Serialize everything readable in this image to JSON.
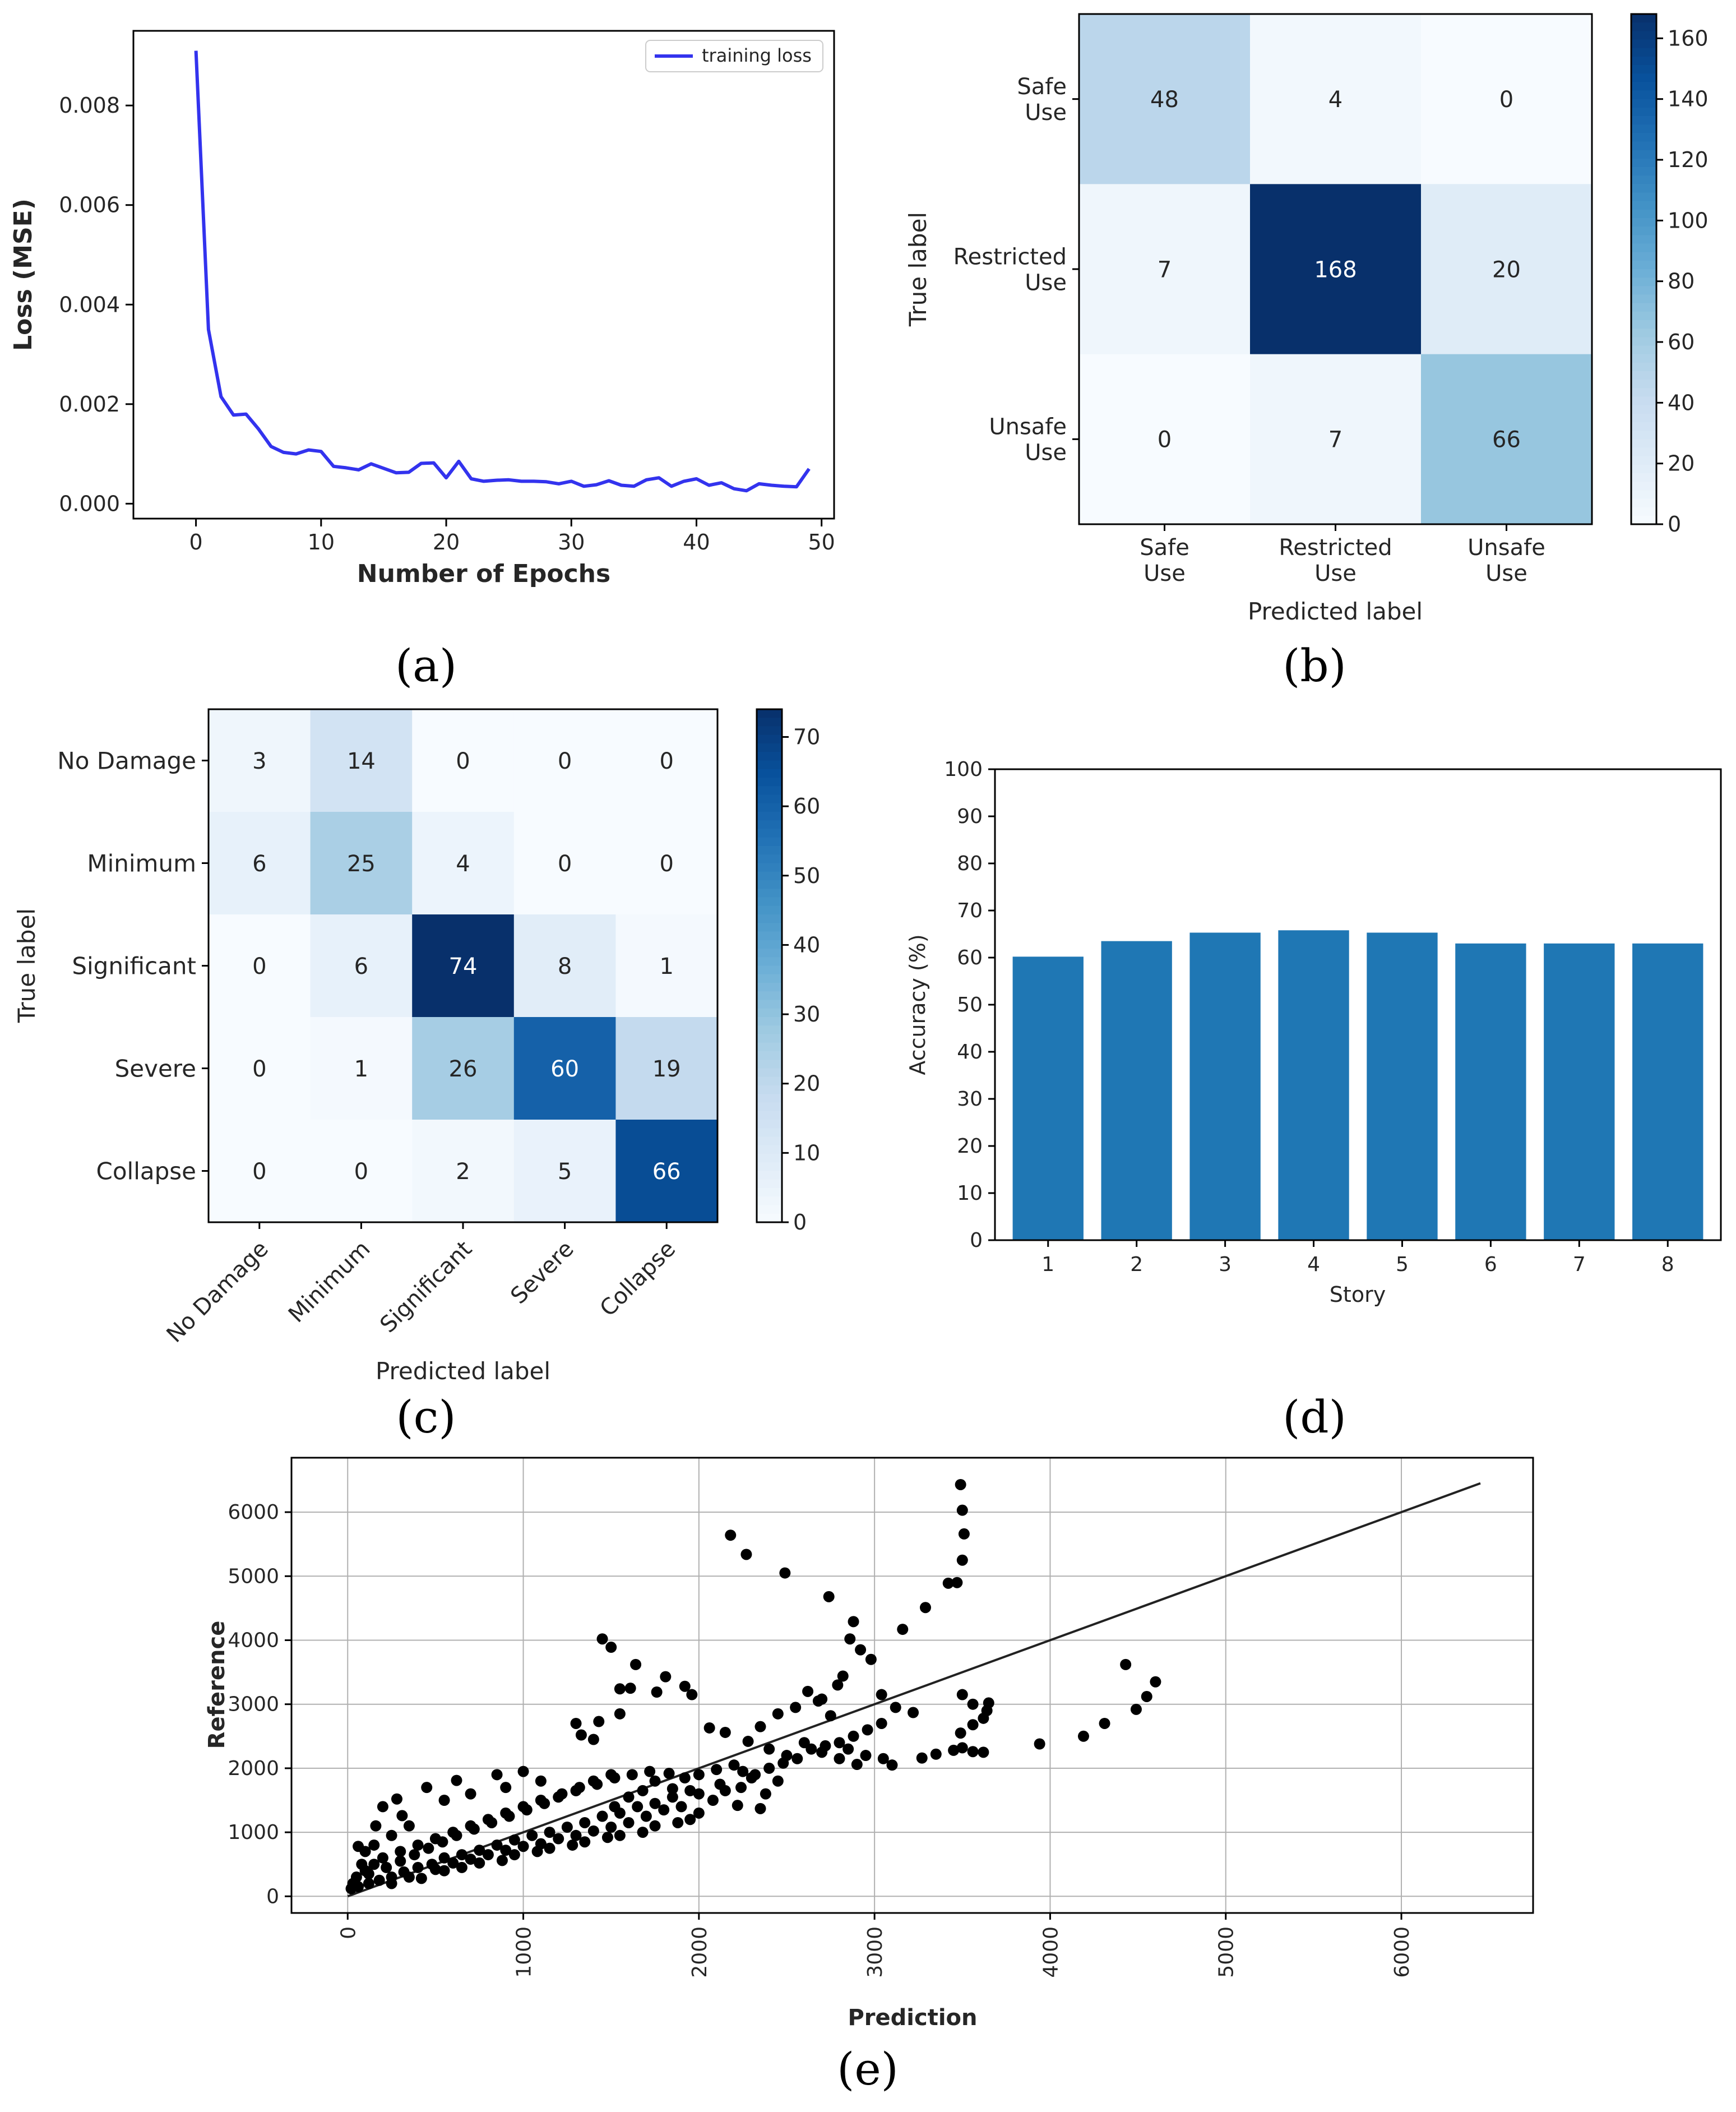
{
  "chart_data": [
    {
      "id": "a",
      "panel_label": "(a)",
      "type": "line",
      "title": "",
      "xlabel": "Number of Epochs",
      "ylabel": "Loss (MSE)",
      "xlim": [
        -5,
        51
      ],
      "ylim": [
        -0.0003,
        0.0095
      ],
      "xticks": [
        0,
        10,
        20,
        30,
        40,
        50
      ],
      "xtick_labels": [
        "0",
        "10",
        "20",
        "30",
        "40",
        "50"
      ],
      "yticks": [
        0,
        0.002,
        0.004,
        0.006,
        0.008
      ],
      "ytick_labels": [
        "0.000",
        "0.002",
        "0.004",
        "0.006",
        "0.008"
      ],
      "legend": "top-right",
      "color": "#3333ee",
      "series": [
        {
          "name": "training loss",
          "x": [
            0,
            1,
            2,
            3,
            4,
            5,
            6,
            7,
            8,
            9,
            10,
            11,
            12,
            13,
            14,
            15,
            16,
            17,
            18,
            19,
            20,
            21,
            22,
            23,
            24,
            25,
            26,
            27,
            28,
            29,
            30,
            31,
            32,
            33,
            34,
            35,
            36,
            37,
            38,
            39,
            40,
            41,
            42,
            43,
            44,
            45,
            46,
            47,
            48,
            49
          ],
          "values": [
            0.0091,
            0.0035,
            0.00215,
            0.00178,
            0.0018,
            0.0015,
            0.00115,
            0.00103,
            0.001,
            0.00108,
            0.00105,
            0.00075,
            0.00072,
            0.00068,
            0.0008,
            0.00071,
            0.00062,
            0.00063,
            0.00081,
            0.00082,
            0.00052,
            0.00085,
            0.0005,
            0.00045,
            0.00047,
            0.00048,
            0.00045,
            0.00045,
            0.00044,
            0.0004,
            0.00045,
            0.00035,
            0.00038,
            0.00046,
            0.00037,
            0.00035,
            0.00048,
            0.00052,
            0.00035,
            0.00045,
            0.0005,
            0.00037,
            0.00042,
            0.0003,
            0.00026,
            0.0004,
            0.00037,
            0.00035,
            0.00034,
            0.0007
          ]
        }
      ]
    },
    {
      "id": "b",
      "panel_label": "(b)",
      "type": "heatmap",
      "title": "",
      "xlabel": "Predicted label",
      "ylabel": "True label",
      "row_labels": [
        [
          "Safe",
          "Use"
        ],
        [
          "Restricted",
          "Use"
        ],
        [
          "Unsafe",
          "Use"
        ]
      ],
      "col_labels": [
        [
          "Safe",
          "Use"
        ],
        [
          "Restricted",
          "Use"
        ],
        [
          "Unsafe",
          "Use"
        ]
      ],
      "matrix": [
        [
          48,
          4,
          0
        ],
        [
          7,
          168,
          20
        ],
        [
          0,
          7,
          66
        ]
      ],
      "vmin": 0,
      "vmax": 168,
      "colorbar_ticks": [
        0,
        20,
        40,
        60,
        80,
        100,
        120,
        140,
        160
      ],
      "colormap": "Blues"
    },
    {
      "id": "c",
      "panel_label": "(c)",
      "type": "heatmap",
      "title": "",
      "xlabel": "Predicted label",
      "ylabel": "True label",
      "row_labels": [
        [
          "No Damage"
        ],
        [
          "Minimum"
        ],
        [
          "Significant"
        ],
        [
          "Severe"
        ],
        [
          "Collapse"
        ]
      ],
      "col_labels": [
        [
          "No Damage"
        ],
        [
          "Minimum"
        ],
        [
          "Significant"
        ],
        [
          "Severe"
        ],
        [
          "Collapse"
        ]
      ],
      "matrix": [
        [
          3,
          14,
          0,
          0,
          0
        ],
        [
          6,
          25,
          4,
          0,
          0
        ],
        [
          0,
          6,
          74,
          8,
          1
        ],
        [
          0,
          1,
          26,
          60,
          19
        ],
        [
          0,
          0,
          2,
          5,
          66
        ]
      ],
      "vmin": 0,
      "vmax": 74,
      "colorbar_ticks": [
        0,
        10,
        20,
        30,
        40,
        50,
        60,
        70
      ],
      "colormap": "Blues"
    },
    {
      "id": "d",
      "panel_label": "(d)",
      "type": "bar",
      "title": "",
      "xlabel": "Story",
      "ylabel": "Accuracy (%)",
      "categories": [
        "1",
        "2",
        "3",
        "4",
        "5",
        "6",
        "7",
        "8"
      ],
      "values": [
        60.2,
        63.5,
        65.3,
        65.8,
        65.3,
        63.0,
        63.0,
        63.0
      ],
      "ylim": [
        0,
        100
      ],
      "yticks": [
        0,
        10,
        20,
        30,
        40,
        50,
        60,
        70,
        80,
        90,
        100
      ],
      "color": "#1f77b4"
    },
    {
      "id": "e",
      "panel_label": "(e)",
      "type": "scatter",
      "title": "",
      "xlabel": "Prediction",
      "ylabel": "Reference",
      "xlim": [
        -320,
        6750
      ],
      "ylim": [
        -260,
        6850
      ],
      "xticks": [
        0,
        1000,
        2000,
        3000,
        4000,
        5000,
        6000
      ],
      "yticks": [
        0,
        1000,
        2000,
        3000,
        4000,
        5000,
        6000
      ],
      "grid": true,
      "reference_line": [
        [
          0,
          0
        ],
        [
          6450,
          6450
        ]
      ],
      "points": [
        [
          2180,
          5640
        ],
        [
          2270,
          5340
        ],
        [
          2490,
          5050
        ],
        [
          2740,
          4680
        ],
        [
          2880,
          4290
        ],
        [
          2860,
          4020
        ],
        [
          2920,
          3850
        ],
        [
          2980,
          3700
        ],
        [
          3160,
          4170
        ],
        [
          3290,
          4510
        ],
        [
          3420,
          4890
        ],
        [
          3500,
          5250
        ],
        [
          3510,
          5660
        ],
        [
          3500,
          6030
        ],
        [
          3490,
          6430
        ],
        [
          3470,
          4900
        ],
        [
          3500,
          3150
        ],
        [
          3560,
          3000
        ],
        [
          3620,
          2780
        ],
        [
          3650,
          3020
        ],
        [
          3560,
          2680
        ],
        [
          3640,
          2900
        ],
        [
          3490,
          2550
        ],
        [
          3500,
          2320
        ],
        [
          3560,
          2260
        ],
        [
          3450,
          2280
        ],
        [
          3620,
          2250
        ],
        [
          3940,
          2380
        ],
        [
          4190,
          2500
        ],
        [
          4310,
          2700
        ],
        [
          4430,
          3620
        ],
        [
          4490,
          2920
        ],
        [
          4550,
          3120
        ],
        [
          4600,
          3350
        ],
        [
          2820,
          3440
        ],
        [
          2790,
          3300
        ],
        [
          2700,
          3080
        ],
        [
          3040,
          3150
        ],
        [
          3120,
          2950
        ],
        [
          3220,
          2870
        ],
        [
          3270,
          2160
        ],
        [
          3350,
          2220
        ],
        [
          1450,
          4020
        ],
        [
          1500,
          3890
        ],
        [
          1550,
          3240
        ],
        [
          1640,
          3620
        ],
        [
          1610,
          3250
        ],
        [
          1760,
          3190
        ],
        [
          1810,
          3430
        ],
        [
          1920,
          3280
        ],
        [
          1960,
          3150
        ],
        [
          1300,
          2700
        ],
        [
          1430,
          2730
        ],
        [
          1330,
          2520
        ],
        [
          1550,
          2850
        ],
        [
          1400,
          2450
        ],
        [
          2060,
          2630
        ],
        [
          2150,
          2560
        ],
        [
          2280,
          2420
        ],
        [
          2350,
          2650
        ],
        [
          2450,
          2850
        ],
        [
          2550,
          2950
        ],
        [
          2620,
          3200
        ],
        [
          2680,
          3050
        ],
        [
          2750,
          2820
        ],
        [
          2400,
          2300
        ],
        [
          2500,
          2200
        ],
        [
          2600,
          2400
        ],
        [
          2700,
          2250
        ],
        [
          2850,
          2300
        ],
        [
          2950,
          2200
        ],
        [
          3050,
          2150
        ],
        [
          3100,
          2050
        ],
        [
          2900,
          2060
        ],
        [
          2800,
          2150
        ],
        [
          1830,
          1920
        ],
        [
          1750,
          1800
        ],
        [
          1680,
          1650
        ],
        [
          1920,
          1850
        ],
        [
          2000,
          1900
        ],
        [
          1850,
          1680
        ],
        [
          1600,
          1550
        ],
        [
          1520,
          1400
        ],
        [
          2100,
          1980
        ],
        [
          2200,
          2050
        ],
        [
          2250,
          1950
        ],
        [
          2120,
          1750
        ],
        [
          2000,
          1600
        ],
        [
          2300,
          1850
        ],
        [
          2380,
          1600
        ],
        [
          2450,
          1800
        ],
        [
          2220,
          1420
        ],
        [
          2350,
          1370
        ],
        [
          1500,
          1900
        ],
        [
          1400,
          1800
        ],
        [
          1300,
          1650
        ],
        [
          1200,
          1550
        ],
        [
          1100,
          1500
        ],
        [
          1000,
          1400
        ],
        [
          900,
          1300
        ],
        [
          800,
          1200
        ],
        [
          700,
          1100
        ],
        [
          600,
          1000
        ],
        [
          500,
          900
        ],
        [
          400,
          800
        ],
        [
          300,
          700
        ],
        [
          200,
          600
        ],
        [
          150,
          500
        ],
        [
          100,
          400
        ],
        [
          50,
          300
        ],
        [
          30,
          200
        ],
        [
          20,
          120
        ],
        [
          60,
          150
        ],
        [
          120,
          200
        ],
        [
          180,
          250
        ],
        [
          250,
          300
        ],
        [
          320,
          380
        ],
        [
          400,
          450
        ],
        [
          480,
          500
        ],
        [
          550,
          600
        ],
        [
          650,
          650
        ],
        [
          750,
          720
        ],
        [
          850,
          800
        ],
        [
          950,
          880
        ],
        [
          1050,
          950
        ],
        [
          1150,
          1000
        ],
        [
          1250,
          1080
        ],
        [
          1350,
          1150
        ],
        [
          1450,
          1250
        ],
        [
          1550,
          1300
        ],
        [
          1650,
          1400
        ],
        [
          1750,
          1450
        ],
        [
          1850,
          1550
        ],
        [
          1950,
          1650
        ],
        [
          200,
          1400
        ],
        [
          280,
          1520
        ],
        [
          310,
          1260
        ],
        [
          450,
          1700
        ],
        [
          620,
          1810
        ],
        [
          700,
          1600
        ],
        [
          850,
          1900
        ],
        [
          1000,
          1950
        ],
        [
          1100,
          1800
        ],
        [
          900,
          1700
        ],
        [
          550,
          1500
        ],
        [
          350,
          1100
        ],
        [
          250,
          950
        ],
        [
          150,
          800
        ],
        [
          100,
          700
        ],
        [
          80,
          500
        ],
        [
          120,
          350
        ],
        [
          220,
          450
        ],
        [
          300,
          550
        ],
        [
          380,
          650
        ],
        [
          460,
          750
        ],
        [
          540,
          850
        ],
        [
          620,
          950
        ],
        [
          720,
          1050
        ],
        [
          820,
          1150
        ],
        [
          920,
          1250
        ],
        [
          1020,
          1350
        ],
        [
          1120,
          1450
        ],
        [
          1220,
          1600
        ],
        [
          1320,
          1700
        ],
        [
          1420,
          1750
        ],
        [
          1520,
          1850
        ],
        [
          1620,
          1900
        ],
        [
          1720,
          1950
        ],
        [
          160,
          1100
        ],
        [
          60,
          780
        ],
        [
          500,
          420
        ],
        [
          600,
          520
        ],
        [
          700,
          580
        ],
        [
          800,
          650
        ],
        [
          900,
          720
        ],
        [
          1000,
          780
        ],
        [
          1100,
          820
        ],
        [
          1200,
          900
        ],
        [
          1300,
          950
        ],
        [
          1400,
          1020
        ],
        [
          1500,
          1080
        ],
        [
          1600,
          1150
        ],
        [
          1700,
          1250
        ],
        [
          1800,
          1350
        ],
        [
          1900,
          1400
        ],
        [
          1950,
          1200
        ],
        [
          1750,
          1100
        ],
        [
          1550,
          950
        ],
        [
          1350,
          850
        ],
        [
          1150,
          750
        ],
        [
          950,
          650
        ],
        [
          750,
          520
        ],
        [
          550,
          400
        ],
        [
          350,
          300
        ],
        [
          250,
          200
        ],
        [
          420,
          280
        ],
        [
          650,
          450
        ],
        [
          880,
          560
        ],
        [
          1080,
          700
        ],
        [
          1280,
          800
        ],
        [
          1480,
          920
        ],
        [
          1680,
          1000
        ],
        [
          1880,
          1150
        ],
        [
          2000,
          1300
        ],
        [
          2080,
          1500
        ],
        [
          2150,
          1650
        ],
        [
          2240,
          1700
        ],
        [
          2320,
          1900
        ],
        [
          2400,
          2000
        ],
        [
          2480,
          2080
        ],
        [
          2560,
          2150
        ],
        [
          2640,
          2300
        ],
        [
          2720,
          2350
        ],
        [
          2800,
          2400
        ],
        [
          2880,
          2500
        ],
        [
          2960,
          2600
        ],
        [
          3040,
          2700
        ]
      ]
    }
  ]
}
